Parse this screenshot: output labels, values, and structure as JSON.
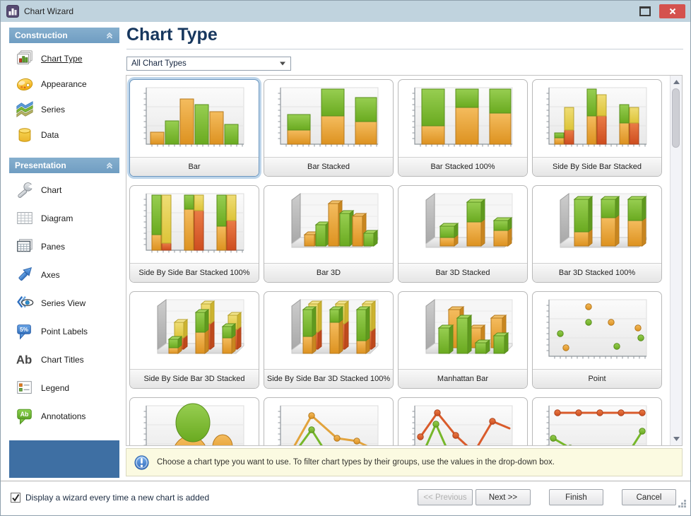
{
  "window": {
    "title": "Chart Wizard"
  },
  "sidebar": {
    "groups": [
      {
        "label": "Construction",
        "items": [
          {
            "label": "Chart Type",
            "icon": "chart-type-icon",
            "selected": true
          },
          {
            "label": "Appearance",
            "icon": "appearance-icon"
          },
          {
            "label": "Series",
            "icon": "series-icon"
          },
          {
            "label": "Data",
            "icon": "data-icon"
          }
        ]
      },
      {
        "label": "Presentation",
        "items": [
          {
            "label": "Chart",
            "icon": "chart-icon"
          },
          {
            "label": "Diagram",
            "icon": "diagram-icon"
          },
          {
            "label": "Panes",
            "icon": "panes-icon"
          },
          {
            "label": "Axes",
            "icon": "axes-icon"
          },
          {
            "label": "Series View",
            "icon": "series-view-icon"
          },
          {
            "label": "Point Labels",
            "icon": "point-labels-icon"
          },
          {
            "label": "Chart Titles",
            "icon": "chart-titles-icon"
          },
          {
            "label": "Legend",
            "icon": "legend-icon"
          },
          {
            "label": "Annotations",
            "icon": "annotations-icon"
          }
        ]
      }
    ]
  },
  "main": {
    "heading": "Chart Type",
    "filter": {
      "value": "All Chart Types"
    },
    "cards": [
      {
        "label": "Bar",
        "thumb": "bar",
        "selected": true
      },
      {
        "label": "Bar Stacked",
        "thumb": "bar-stacked"
      },
      {
        "label": "Bar Stacked 100%",
        "thumb": "bar-stacked-100"
      },
      {
        "label": "Side By Side Bar Stacked",
        "thumb": "sbs-bar-stacked"
      },
      {
        "label": "Side By Side Bar Stacked 100%",
        "thumb": "sbs-bar-stacked-100"
      },
      {
        "label": "Bar 3D",
        "thumb": "bar-3d"
      },
      {
        "label": "Bar 3D Stacked",
        "thumb": "bar-3d-stacked"
      },
      {
        "label": "Bar 3D Stacked 100%",
        "thumb": "bar-3d-stacked-100"
      },
      {
        "label": "Side By Side Bar 3D Stacked",
        "thumb": "sbs-bar-3d-stacked"
      },
      {
        "label": "Side By Side Bar 3D Stacked 100%",
        "thumb": "sbs-bar-3d-stacked-100"
      },
      {
        "label": "Manhattan Bar",
        "thumb": "manhattan-bar"
      },
      {
        "label": "Point",
        "thumb": "point"
      },
      {
        "label": "",
        "thumb": "bubble"
      },
      {
        "label": "",
        "thumb": "line-a"
      },
      {
        "label": "",
        "thumb": "line-b"
      },
      {
        "label": "",
        "thumb": "line-c"
      }
    ],
    "info": "Choose a chart type you want to use. To filter chart types by their groups, use the values in the drop-down box."
  },
  "footer": {
    "checkbox": {
      "label": "Display a wizard every time a new chart is added",
      "checked": true
    },
    "buttons": [
      {
        "label": "<< Previous",
        "disabled": true
      },
      {
        "label": "Next >>",
        "disabled": false
      },
      {
        "label": "Finish",
        "disabled": false
      },
      {
        "label": "Cancel",
        "disabled": false
      }
    ]
  },
  "colors": {
    "titlebar_bg": "#c0d3de",
    "close_button": "#d4524e",
    "group_header_blue": "#76a1c4",
    "selection_ring": "#bdd5ea",
    "sidebar_footer_blue": "#3e6fa3",
    "info_bar_bg": "#fbfae1",
    "bar_orange": "#e8a23b",
    "bar_green": "#7cba33",
    "bar_red": "#dc5f2e",
    "bar_yellow": "#e7cf4f"
  }
}
